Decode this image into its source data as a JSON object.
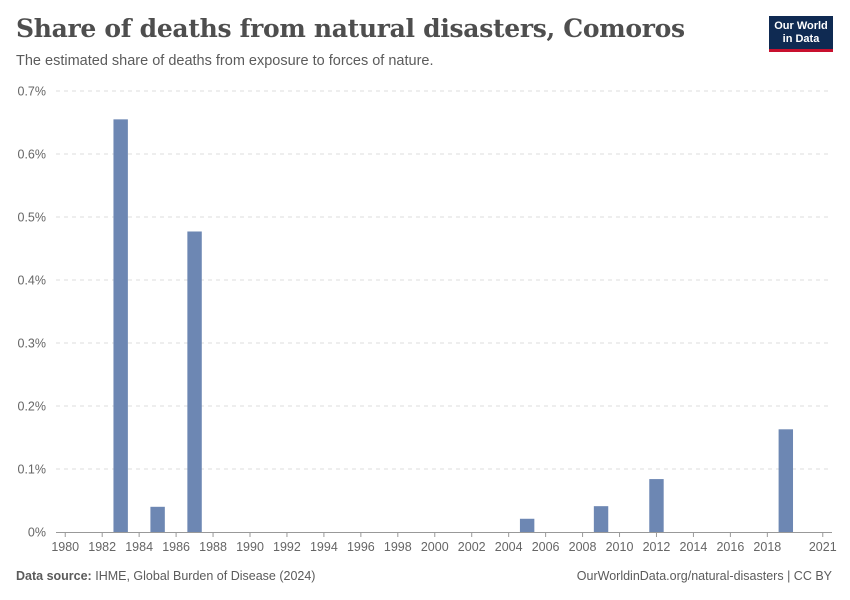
{
  "header": {
    "title": "Share of deaths from natural disasters, Comoros",
    "subtitle": "The estimated share of deaths from exposure to forces of nature.",
    "logo_line1": "Our World",
    "logo_line2": "in Data"
  },
  "footer": {
    "source_label": "Data source:",
    "source_text": "IHME, Global Burden of Disease (2024)",
    "credit": "OurWorldinData.org/natural-disasters | CC BY"
  },
  "colors": {
    "bar": "#6d87b3",
    "grid": "#dddddd",
    "axis": "#999999"
  },
  "chart_data": {
    "type": "bar",
    "title": "Share of deaths from natural disasters, Comoros",
    "xlabel": "",
    "ylabel": "",
    "x_range": [
      1980,
      2021
    ],
    "ylim": [
      0,
      0.7
    ],
    "y_ticks": [
      0,
      0.1,
      0.2,
      0.3,
      0.4,
      0.5,
      0.6,
      0.7
    ],
    "y_tick_labels": [
      "0%",
      "0.1%",
      "0.2%",
      "0.3%",
      "0.4%",
      "0.5%",
      "0.6%",
      "0.7%"
    ],
    "x_ticks": [
      1980,
      1982,
      1984,
      1986,
      1988,
      1990,
      1992,
      1994,
      1996,
      1998,
      2000,
      2002,
      2004,
      2006,
      2008,
      2010,
      2012,
      2014,
      2016,
      2018,
      2021
    ],
    "x_tick_labels": [
      "1980",
      "1982",
      "1984",
      "1986",
      "1988",
      "1990",
      "1992",
      "1994",
      "1996",
      "1998",
      "2000",
      "2002",
      "2004",
      "2006",
      "2008",
      "2010",
      "2012",
      "2014",
      "2016",
      "2018",
      "2021"
    ],
    "unit": "%",
    "series": [
      {
        "name": "Comoros",
        "x": [
          1983,
          1985,
          1987,
          2005,
          2009,
          2012,
          2019
        ],
        "values": [
          0.655,
          0.04,
          0.477,
          0.021,
          0.041,
          0.084,
          0.163
        ]
      }
    ]
  }
}
